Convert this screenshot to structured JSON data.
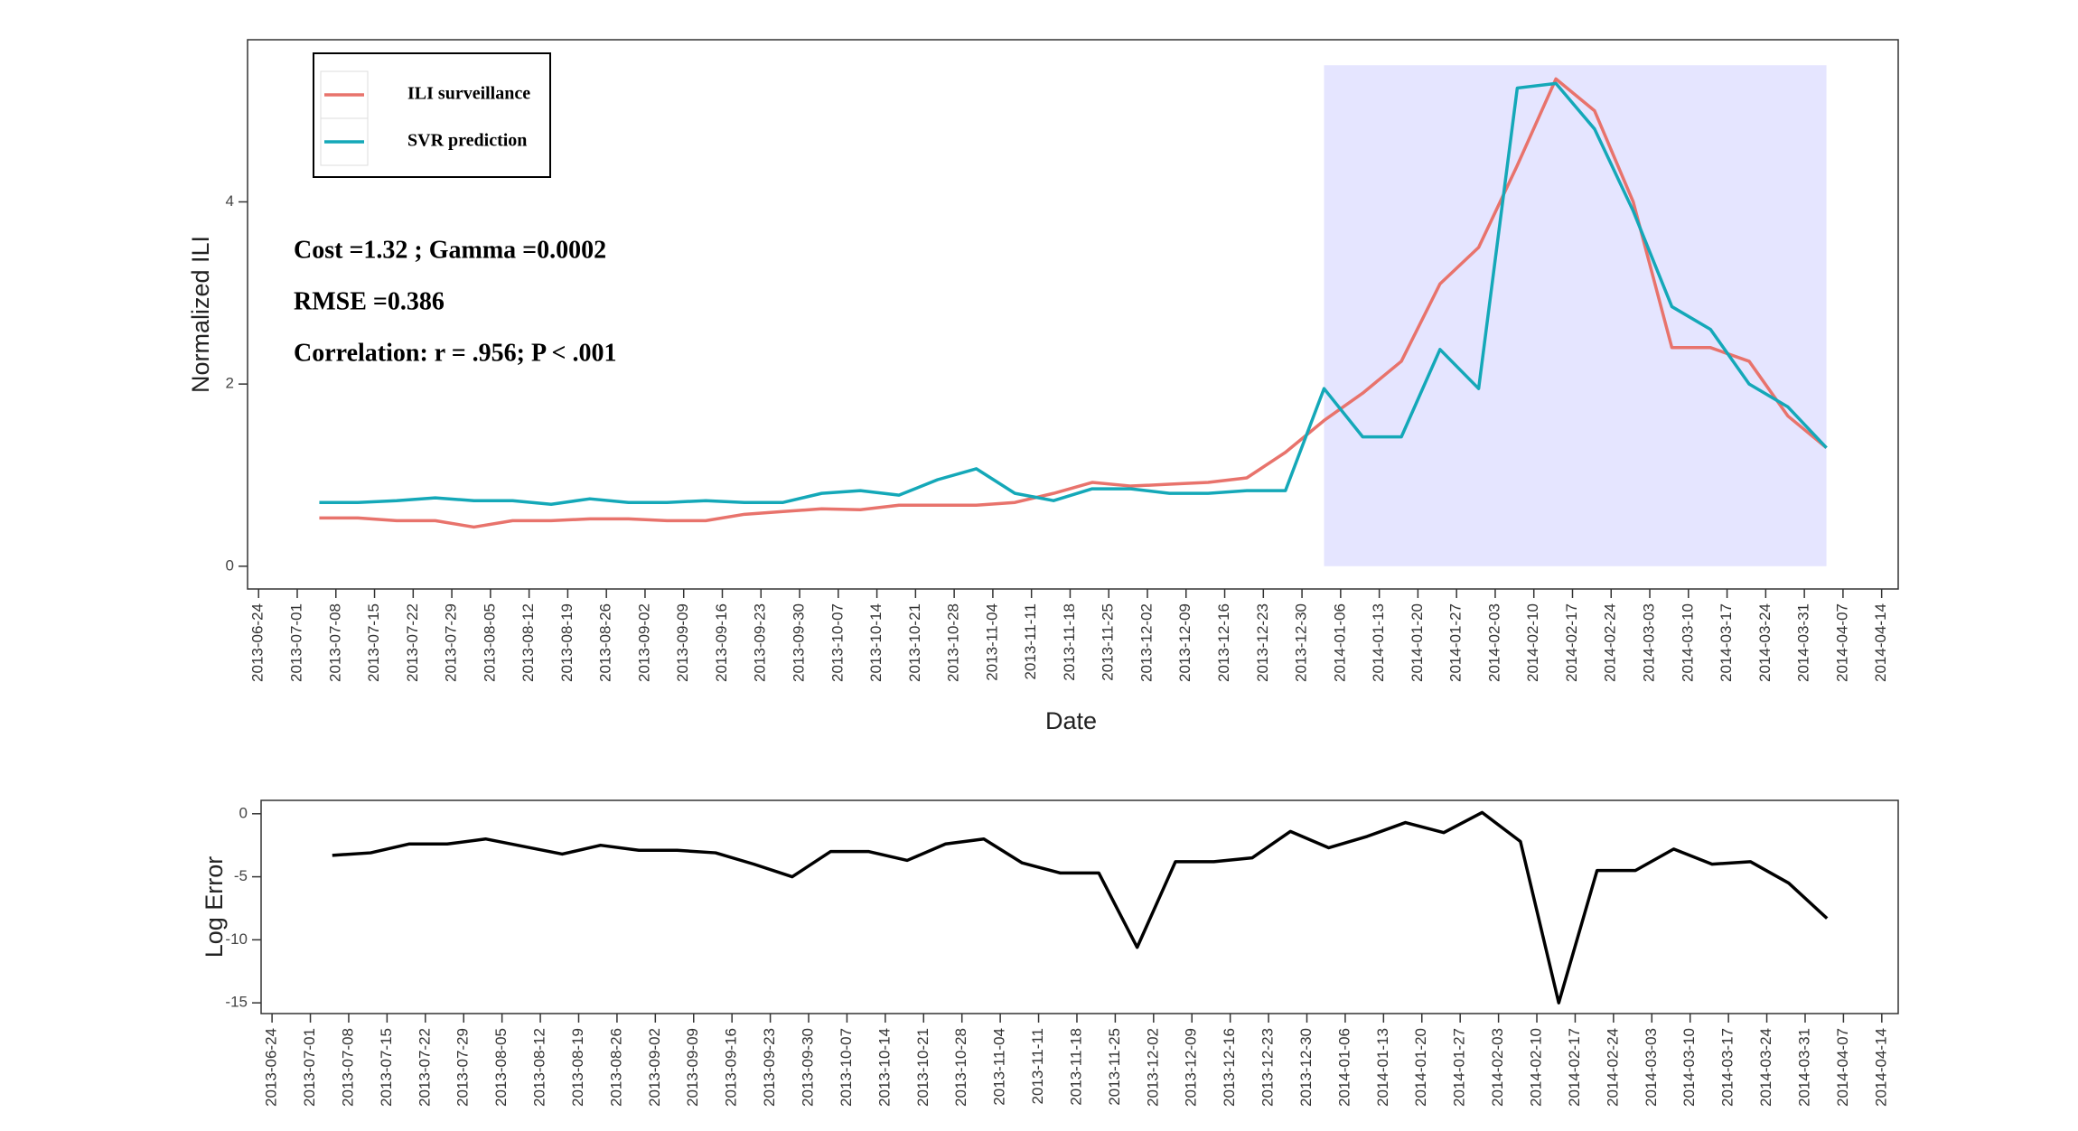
{
  "chart_data": [
    {
      "type": "line",
      "xlabel": "Date",
      "ylabel": "Normalized ILI",
      "x": [
        "2013-07-05",
        "2013-07-12",
        "2013-07-19",
        "2013-07-26",
        "2013-08-02",
        "2013-08-09",
        "2013-08-16",
        "2013-08-23",
        "2013-08-30",
        "2013-09-06",
        "2013-09-13",
        "2013-09-20",
        "2013-09-27",
        "2013-10-04",
        "2013-10-11",
        "2013-10-18",
        "2013-10-25",
        "2013-11-01",
        "2013-11-08",
        "2013-11-15",
        "2013-11-22",
        "2013-11-29",
        "2013-12-06",
        "2013-12-13",
        "2013-12-20",
        "2013-12-27",
        "2014-01-03",
        "2014-01-10",
        "2014-01-17",
        "2014-01-24",
        "2014-01-31",
        "2014-02-07",
        "2014-02-14",
        "2014-02-21",
        "2014-02-28",
        "2014-03-07",
        "2014-03-14",
        "2014-03-21",
        "2014-03-28",
        "2014-04-04"
      ],
      "series": [
        {
          "name": "ILI surveillance",
          "color": "#e8736c",
          "values": [
            0.53,
            0.53,
            0.5,
            0.5,
            0.43,
            0.5,
            0.5,
            0.52,
            0.52,
            0.5,
            0.5,
            0.57,
            0.6,
            0.63,
            0.62,
            0.67,
            0.67,
            0.67,
            0.7,
            0.8,
            0.92,
            0.88,
            0.9,
            0.92,
            0.97,
            1.25,
            1.6,
            1.9,
            2.25,
            3.1,
            3.5,
            4.4,
            5.35,
            5.0,
            4.0,
            2.4,
            2.4,
            2.25,
            1.65,
            1.3
          ]
        },
        {
          "name": "SVR prediction",
          "color": "#14a8b8",
          "values": [
            0.7,
            0.7,
            0.72,
            0.75,
            0.72,
            0.72,
            0.68,
            0.74,
            0.7,
            0.7,
            0.72,
            0.7,
            0.7,
            0.8,
            0.83,
            0.78,
            0.95,
            1.07,
            0.8,
            0.72,
            0.85,
            0.85,
            0.8,
            0.8,
            0.83,
            0.83,
            1.95,
            1.42,
            1.42,
            2.38,
            1.95,
            5.25,
            5.3,
            4.8,
            3.9,
            2.85,
            2.6,
            2.0,
            1.75,
            1.3
          ]
        }
      ],
      "highlight": {
        "x": [
          "2014-01-03",
          "2014-04-04"
        ],
        "y": [
          0,
          5.5
        ],
        "color": "#e5e5ff"
      },
      "xlim": [
        "2013-06-22",
        "2014-04-17"
      ],
      "xticks": [
        "2013-06-24",
        "2013-07-01",
        "2013-07-08",
        "2013-07-15",
        "2013-07-22",
        "2013-07-29",
        "2013-08-05",
        "2013-08-12",
        "2013-08-19",
        "2013-08-26",
        "2013-09-02",
        "2013-09-09",
        "2013-09-16",
        "2013-09-23",
        "2013-09-30",
        "2013-10-07",
        "2013-10-14",
        "2013-10-21",
        "2013-10-28",
        "2013-11-04",
        "2013-11-11",
        "2013-11-18",
        "2013-11-25",
        "2013-12-02",
        "2013-12-09",
        "2013-12-16",
        "2013-12-23",
        "2013-12-30",
        "2014-01-06",
        "2014-01-13",
        "2014-01-20",
        "2014-01-27",
        "2014-02-03",
        "2014-02-10",
        "2014-02-17",
        "2014-02-24",
        "2014-03-03",
        "2014-03-10",
        "2014-03-17",
        "2014-03-24",
        "2014-03-31",
        "2014-04-07",
        "2014-04-14"
      ],
      "ylim": [
        -0.25,
        5.78
      ],
      "yticks": [
        0,
        2,
        4
      ],
      "legend": "top-left",
      "annotations": [
        "Cost =1.32 ; Gamma =0.0002",
        "RMSE =0.386",
        "Correlation:  r = .956; P < .001"
      ]
    },
    {
      "type": "line",
      "ylabel": "Log Error",
      "x": [
        "2013-07-05",
        "2013-07-12",
        "2013-07-19",
        "2013-07-26",
        "2013-08-02",
        "2013-08-09",
        "2013-08-16",
        "2013-08-23",
        "2013-08-30",
        "2013-09-06",
        "2013-09-13",
        "2013-09-20",
        "2013-09-27",
        "2013-10-04",
        "2013-10-11",
        "2013-10-18",
        "2013-10-25",
        "2013-11-01",
        "2013-11-08",
        "2013-11-15",
        "2013-11-22",
        "2013-11-29",
        "2013-12-06",
        "2013-12-13",
        "2013-12-20",
        "2013-12-27",
        "2014-01-03",
        "2014-01-10",
        "2014-01-17",
        "2014-01-24",
        "2014-01-31",
        "2014-02-07",
        "2014-02-14",
        "2014-02-21",
        "2014-02-28",
        "2014-03-07",
        "2014-03-14",
        "2014-03-21",
        "2014-03-28",
        "2014-04-04"
      ],
      "series": [
        {
          "color": "#000000",
          "values": [
            -3.3,
            -3.1,
            -2.4,
            -2.4,
            -2.0,
            -2.6,
            -3.2,
            -2.5,
            -2.9,
            -2.9,
            -3.1,
            -4.0,
            -5.0,
            -3.0,
            -3.0,
            -3.7,
            -2.4,
            -2.0,
            -3.9,
            -4.7,
            -4.7,
            -10.6,
            -3.8,
            -3.8,
            -3.5,
            -1.4,
            -2.7,
            -1.8,
            -0.7,
            -1.5,
            0.1,
            -2.2,
            -15.0,
            -4.5,
            -4.5,
            -2.8,
            -4.0,
            -3.8,
            -5.5,
            -8.3
          ]
        }
      ],
      "xlim": [
        "2013-06-22",
        "2014-04-17"
      ],
      "xticks": [
        "2013-06-24",
        "2013-07-01",
        "2013-07-08",
        "2013-07-15",
        "2013-07-22",
        "2013-07-29",
        "2013-08-05",
        "2013-08-12",
        "2013-08-19",
        "2013-08-26",
        "2013-09-02",
        "2013-09-09",
        "2013-09-16",
        "2013-09-23",
        "2013-09-30",
        "2013-10-07",
        "2013-10-14",
        "2013-10-21",
        "2013-10-28",
        "2013-11-04",
        "2013-11-11",
        "2013-11-18",
        "2013-11-25",
        "2013-12-02",
        "2013-12-09",
        "2013-12-16",
        "2013-12-23",
        "2013-12-30",
        "2014-01-06",
        "2014-01-13",
        "2014-01-20",
        "2014-01-27",
        "2014-02-03",
        "2014-02-10",
        "2014-02-17",
        "2014-02-24",
        "2014-03-03",
        "2014-03-10",
        "2014-03-17",
        "2014-03-24",
        "2014-03-31",
        "2014-04-07",
        "2014-04-14"
      ],
      "ylim": [
        -15.85,
        1.06
      ],
      "yticks": [
        -15,
        -10,
        -5,
        0
      ]
    }
  ]
}
